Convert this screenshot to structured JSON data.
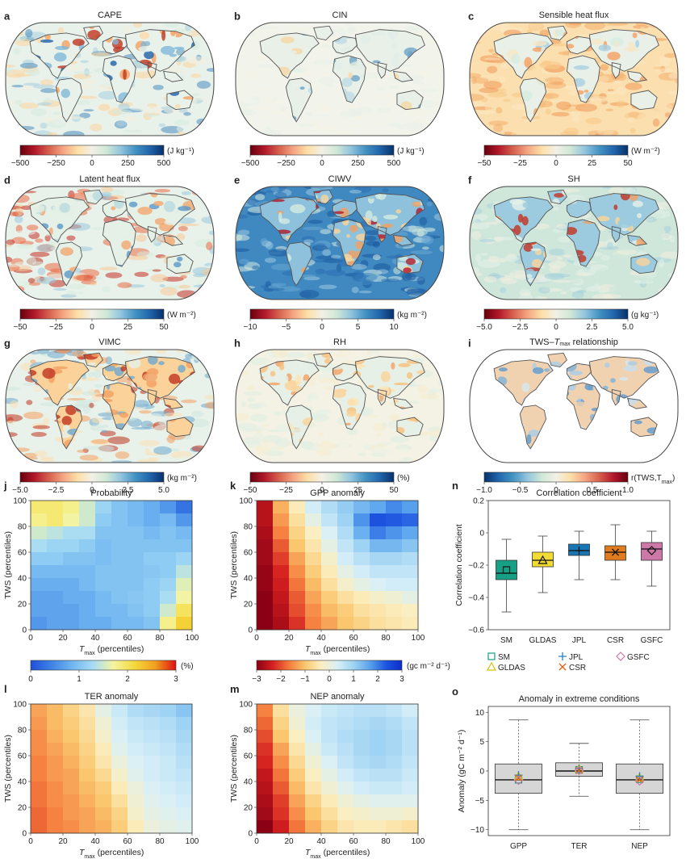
{
  "colors": {
    "diverging": [
      "#67000d",
      "#b2182b",
      "#d6604d",
      "#f4a582",
      "#fde0a8",
      "#f2f0e6",
      "#d0e8d6",
      "#92c5de",
      "#4393c3",
      "#2166ac",
      "#08306b"
    ],
    "probability": [
      "#1f4fd8",
      "#3f82e6",
      "#70b6f0",
      "#a7dcf5",
      "#f5f5a0",
      "#f5d93b",
      "#f0a020",
      "#e01010"
    ],
    "gpp": [
      "#8b0014",
      "#d42020",
      "#f47a3c",
      "#fbc76e",
      "#fbefc0",
      "#d8f0f8",
      "#9fd3f3",
      "#5aa4ee",
      "#1e56e0",
      "#0a2ec8"
    ],
    "land": "#ffffff",
    "coast": "#555555",
    "box": {
      "SM": "#16a085",
      "GLDAS": "#f2dc33",
      "JPL": "#1976b4",
      "CSR": "#e07b20",
      "GSFC": "#cc79a7"
    },
    "marker": {
      "SM": "#16a085",
      "GLDAS": "#d4c300",
      "JPL": "#2a7fc0",
      "CSR": "#e06010",
      "GSFC": "#cc79a7"
    }
  },
  "maps": [
    {
      "letter": "a",
      "title": "CAPE",
      "unit": "(J kg⁻¹)",
      "ticks": [
        "−500",
        "−250",
        "0",
        "250",
        "500"
      ],
      "variant": "cape"
    },
    {
      "letter": "b",
      "title": "CIN",
      "unit": "(J kg⁻¹)",
      "ticks": [
        "−500",
        "−250",
        "0",
        "250",
        "500"
      ],
      "variant": "cin"
    },
    {
      "letter": "c",
      "title": "Sensible heat flux",
      "unit": "(W m⁻²)",
      "ticks": [
        "−50",
        "−25",
        "0",
        "25",
        "50"
      ],
      "variant": "sensible"
    },
    {
      "letter": "d",
      "title": "Latent heat flux",
      "unit": "(W m⁻²)",
      "ticks": [
        "−50",
        "−25",
        "0",
        "25",
        "50"
      ],
      "variant": "latent"
    },
    {
      "letter": "e",
      "title": "CIWV",
      "unit": "(kg m⁻²)",
      "ticks": [
        "−10",
        "−5",
        "0",
        "5",
        "10"
      ],
      "variant": "ciwv"
    },
    {
      "letter": "f",
      "title": "SH",
      "unit": "(g kg⁻¹)",
      "ticks": [
        "−5.0",
        "−2.5",
        "0",
        "2.5",
        "5.0"
      ],
      "variant": "sh"
    },
    {
      "letter": "g",
      "title": "VIMC",
      "unit": "(kg m⁻²)",
      "ticks": [
        "−5.0",
        "−2.5",
        "0",
        "2.5",
        "5.0"
      ],
      "variant": "vimc"
    },
    {
      "letter": "h",
      "title": "RH",
      "unit": "(%)",
      "ticks": [
        "−50",
        "−25",
        "0",
        "25",
        "50"
      ],
      "variant": "rh"
    },
    {
      "letter": "i",
      "title": "TWS–T",
      "title_sub": "max",
      "title_after": " relationship",
      "unit": "r(TWS,T",
      "unit_sub": "max",
      "unit_after": ")",
      "ticks": [
        "−1.0",
        "−0.5",
        "0",
        "0.5",
        "1.0"
      ],
      "variant": "tws"
    }
  ],
  "heatmaps": {
    "axis_x_main": "T",
    "axis_x_sub": "max",
    "axis_x_after": " (percentiles)",
    "axis_y": "TWS (percentiles)",
    "ticks": [
      "0",
      "20",
      "40",
      "60",
      "80",
      "100"
    ],
    "panels": [
      {
        "letter": "j",
        "title": "Probability",
        "scheme": "probability",
        "range": [
          0,
          3
        ]
      },
      {
        "letter": "k",
        "title": "GPP anomaly",
        "scheme": "gpp",
        "range": [
          -3,
          3
        ]
      },
      {
        "letter": "l",
        "title": "TER anomaly",
        "scheme": "gpp",
        "range": [
          -3,
          3
        ]
      },
      {
        "letter": "m",
        "title": "NEP anomaly",
        "scheme": "gpp",
        "range": [
          -3,
          3
        ]
      }
    ],
    "colorbars": [
      {
        "scheme": "probability",
        "ticks": [
          "0",
          "1",
          "2",
          "3"
        ],
        "unit": "(%)"
      },
      {
        "scheme": "gpp",
        "ticks": [
          "−3",
          "−2",
          "−1",
          "0",
          "1",
          "2",
          "3"
        ],
        "unit": "(gc m⁻² d⁻¹)"
      }
    ]
  },
  "chart_data": [
    {
      "type": "heatmap",
      "title": "Probability",
      "xlabel": "Tmax (percentiles)",
      "ylabel": "TWS (percentiles)",
      "unit": "(%)",
      "x": [
        5,
        15,
        25,
        35,
        45,
        55,
        65,
        75,
        85,
        95
      ],
      "y": [
        95,
        85,
        75,
        65,
        55,
        45,
        35,
        25,
        15,
        5
      ],
      "values": [
        [
          1.9,
          1.9,
          1.8,
          1.5,
          1.2,
          1.0,
          0.9,
          0.8,
          0.6,
          0.3
        ],
        [
          1.8,
          1.9,
          1.7,
          1.5,
          1.1,
          1.0,
          0.9,
          0.8,
          0.9,
          0.6
        ],
        [
          1.5,
          1.4,
          1.3,
          1.3,
          1.0,
          1.0,
          1.0,
          0.9,
          1.0,
          0.9
        ],
        [
          1.3,
          1.2,
          1.2,
          1.1,
          0.95,
          1.0,
          1.0,
          1.0,
          1.0,
          1.0
        ],
        [
          1.1,
          1.1,
          1.0,
          1.0,
          0.95,
          1.0,
          1.0,
          1.1,
          1.1,
          1.2
        ],
        [
          0.9,
          0.9,
          0.9,
          0.9,
          1.0,
          1.0,
          1.0,
          1.05,
          1.1,
          1.4
        ],
        [
          0.8,
          0.8,
          0.8,
          0.9,
          1.0,
          1.0,
          1.0,
          1.1,
          1.2,
          1.6
        ],
        [
          0.7,
          0.7,
          0.8,
          0.8,
          0.9,
          1.0,
          1.05,
          1.1,
          1.3,
          1.7
        ],
        [
          0.7,
          0.7,
          0.7,
          0.8,
          0.9,
          0.9,
          1.0,
          1.1,
          1.5,
          2.0
        ],
        [
          0.6,
          0.7,
          0.7,
          0.8,
          0.8,
          0.9,
          0.9,
          1.0,
          1.8,
          2.2
        ]
      ]
    },
    {
      "type": "heatmap",
      "title": "GPP anomaly",
      "xlabel": "Tmax (percentiles)",
      "ylabel": "TWS (percentiles)",
      "unit": "(gc m⁻² d⁻¹)",
      "x": [
        5,
        15,
        25,
        35,
        45,
        55,
        65,
        75,
        85,
        95
      ],
      "y": [
        95,
        85,
        75,
        65,
        55,
        45,
        35,
        25,
        15,
        5
      ],
      "values": [
        [
          -2.6,
          -1.2,
          -0.4,
          0.4,
          0.8,
          1.1,
          1.4,
          1.6,
          1.9,
          1.7
        ],
        [
          -2.6,
          -1.4,
          -0.6,
          0.1,
          0.6,
          1.0,
          1.8,
          2.4,
          2.3,
          2.2
        ],
        [
          -2.7,
          -1.6,
          -0.8,
          -0.3,
          0.3,
          0.8,
          1.5,
          2.0,
          1.8,
          1.6
        ],
        [
          -2.8,
          -1.9,
          -1.0,
          -0.5,
          0.1,
          0.6,
          1.0,
          1.4,
          1.4,
          1.2
        ],
        [
          -2.8,
          -2.1,
          -1.3,
          -0.7,
          -0.2,
          0.4,
          0.7,
          0.9,
          0.9,
          0.8
        ],
        [
          -2.9,
          -2.3,
          -1.5,
          -0.9,
          -0.4,
          0.1,
          0.4,
          0.6,
          0.6,
          0.6
        ],
        [
          -2.9,
          -2.4,
          -1.7,
          -1.1,
          -0.6,
          -0.2,
          0.1,
          0.3,
          0.4,
          0.4
        ],
        [
          -3.0,
          -2.5,
          -1.9,
          -1.3,
          -0.9,
          -0.6,
          -0.4,
          -0.2,
          -0.1,
          0.1
        ],
        [
          -3.0,
          -2.6,
          -2.0,
          -1.5,
          -1.1,
          -0.9,
          -0.6,
          -0.5,
          -0.4,
          -0.3
        ],
        [
          -3.0,
          -2.7,
          -2.2,
          -1.6,
          -1.3,
          -1.0,
          -0.8,
          -0.6,
          -0.5,
          -0.4
        ]
      ]
    },
    {
      "type": "heatmap",
      "title": "TER anomaly",
      "xlabel": "Tmax (percentiles)",
      "ylabel": "TWS (percentiles)",
      "unit": "(gc m⁻² d⁻¹)",
      "x": [
        5,
        15,
        25,
        35,
        45,
        55,
        65,
        75,
        85,
        95
      ],
      "y": [
        95,
        85,
        75,
        65,
        55,
        45,
        35,
        25,
        15,
        5
      ],
      "values": [
        [
          -1.3,
          -1.1,
          -0.8,
          -0.5,
          0.1,
          0.5,
          0.8,
          0.9,
          1.0,
          1.2
        ],
        [
          -1.4,
          -1.1,
          -0.9,
          -0.6,
          -0.1,
          0.4,
          0.6,
          0.7,
          0.8,
          1.0
        ],
        [
          -1.5,
          -1.2,
          -1.0,
          -0.7,
          -0.2,
          0.3,
          0.5,
          0.6,
          0.7,
          0.9
        ],
        [
          -1.5,
          -1.3,
          -1.1,
          -0.8,
          -0.4,
          0.2,
          0.4,
          0.5,
          0.6,
          0.8
        ],
        [
          -1.6,
          -1.4,
          -1.2,
          -0.9,
          -0.5,
          0.0,
          0.3,
          0.4,
          0.5,
          0.7
        ],
        [
          -1.6,
          -1.4,
          -1.3,
          -1.0,
          -0.7,
          -0.2,
          0.2,
          0.4,
          0.5,
          0.6
        ],
        [
          -1.7,
          -1.5,
          -1.3,
          -1.1,
          -0.9,
          -0.4,
          0.0,
          0.3,
          0.4,
          0.5
        ],
        [
          -1.7,
          -1.5,
          -1.4,
          -1.2,
          -1.0,
          -0.6,
          -0.1,
          0.2,
          0.3,
          0.4
        ],
        [
          -1.8,
          -1.6,
          -1.4,
          -1.3,
          -1.1,
          -0.8,
          -0.2,
          0.1,
          0.2,
          0.3
        ],
        [
          -1.8,
          -1.6,
          -1.5,
          -1.3,
          -1.2,
          -0.9,
          -0.4,
          0.0,
          0.1,
          0.2
        ]
      ]
    },
    {
      "type": "heatmap",
      "title": "NEP anomaly",
      "xlabel": "Tmax (percentiles)",
      "ylabel": "TWS (percentiles)",
      "unit": "(gc m⁻² d⁻¹)",
      "x": [
        5,
        15,
        25,
        35,
        45,
        55,
        65,
        75,
        85,
        95
      ],
      "y": [
        95,
        85,
        75,
        65,
        55,
        45,
        35,
        25,
        15,
        5
      ],
      "values": [
        [
          -1.6,
          -0.6,
          0.0,
          0.3,
          0.5,
          0.6,
          0.7,
          0.7,
          0.6,
          0.4
        ],
        [
          -1.8,
          -0.8,
          -0.1,
          0.4,
          0.6,
          0.7,
          0.8,
          0.9,
          0.8,
          0.6
        ],
        [
          -2.0,
          -1.0,
          -0.3,
          0.3,
          0.6,
          0.8,
          0.9,
          1.0,
          0.9,
          0.7
        ],
        [
          -2.2,
          -1.3,
          -0.5,
          0.1,
          0.5,
          0.7,
          0.9,
          1.0,
          0.9,
          0.7
        ],
        [
          -2.3,
          -1.5,
          -0.7,
          -0.1,
          0.3,
          0.6,
          0.8,
          0.9,
          0.8,
          0.6
        ],
        [
          -2.5,
          -1.7,
          -0.9,
          -0.3,
          0.1,
          0.4,
          0.6,
          0.7,
          0.7,
          0.5
        ],
        [
          -2.6,
          -1.9,
          -1.1,
          -0.5,
          -0.1,
          0.2,
          0.4,
          0.5,
          0.5,
          0.4
        ],
        [
          -2.7,
          -2.1,
          -1.3,
          -0.8,
          -0.4,
          -0.1,
          0.1,
          0.2,
          0.2,
          0.2
        ],
        [
          -2.8,
          -2.2,
          -1.5,
          -1.0,
          -0.6,
          -0.3,
          -0.2,
          -0.1,
          -0.1,
          -0.2
        ],
        [
          -3.0,
          -2.4,
          -1.7,
          -1.2,
          -0.8,
          -0.5,
          -0.4,
          -0.4,
          -0.5,
          -0.6
        ]
      ]
    },
    {
      "type": "box",
      "title": "Correlation coefficient",
      "ylabel": "Correlation coefficient",
      "ylim": [
        -0.6,
        0.2
      ],
      "yticks": [
        "−0.6",
        "−0.4",
        "−0.2",
        "0",
        "0.2"
      ],
      "categories": [
        "SM",
        "GLDAS",
        "JPL",
        "CSR",
        "GSFC"
      ],
      "boxes": [
        {
          "name": "SM",
          "whisker_low": -0.49,
          "q1": -0.29,
          "median": -0.25,
          "q3": -0.17,
          "whisker_high": -0.04,
          "marker": -0.23,
          "marker_shape": "square"
        },
        {
          "name": "GLDAS",
          "whisker_low": -0.37,
          "q1": -0.21,
          "median": -0.17,
          "q3": -0.12,
          "whisker_high": -0.02,
          "marker": -0.17,
          "marker_shape": "triangle"
        },
        {
          "name": "JPL",
          "whisker_low": -0.29,
          "q1": -0.14,
          "median": -0.11,
          "q3": -0.07,
          "whisker_high": 0.01,
          "marker": -0.11,
          "marker_shape": "plus"
        },
        {
          "name": "CSR",
          "whisker_low": -0.29,
          "q1": -0.17,
          "median": -0.12,
          "q3": -0.08,
          "whisker_high": 0.05,
          "marker": -0.12,
          "marker_shape": "x"
        },
        {
          "name": "GSFC",
          "whisker_low": -0.33,
          "q1": -0.17,
          "median": -0.1,
          "q3": -0.06,
          "whisker_high": 0.01,
          "marker": -0.11,
          "marker_shape": "diamond"
        }
      ],
      "legend": [
        "SM",
        "JPL",
        "GSFC",
        "GLDAS",
        "CSR"
      ]
    },
    {
      "type": "box",
      "title": "Anomaly in extreme conditions",
      "ylabel": "Anomaly (gC m⁻² d⁻¹)",
      "ylim": [
        -11,
        11
      ],
      "yticks": [
        "−10",
        "−5",
        "0",
        "5",
        "10"
      ],
      "categories": [
        "GPP",
        "TER",
        "NEP"
      ],
      "boxes": [
        {
          "name": "GPP",
          "whisker_low": -10.0,
          "q1": -3.8,
          "median": -1.5,
          "q3": 1.2,
          "whisker_high": 8.7,
          "markers": {
            "SM": -1.5,
            "GLDAS": -0.9,
            "JPL": -0.7,
            "CSR": -1.2,
            "GSFC": -1.6
          }
        },
        {
          "name": "TER",
          "whisker_low": -4.3,
          "q1": -0.9,
          "median": 0.0,
          "q3": 1.4,
          "whisker_high": 4.7,
          "markers": {
            "SM": 0.2,
            "GLDAS": 0.4,
            "JPL": 0.4,
            "CSR": 0.1,
            "GSFC": 0.1
          }
        },
        {
          "name": "NEP",
          "whisker_low": -10.0,
          "q1": -3.8,
          "median": -1.5,
          "q3": 1.2,
          "whisker_high": 8.7,
          "markers": {
            "SM": -1.4,
            "GLDAS": -1.1,
            "JPL": -0.9,
            "CSR": -1.5,
            "GSFC": -1.7
          }
        }
      ]
    }
  ],
  "panel_n": {
    "letter": "n",
    "ticks_x": [
      "SM",
      "GLDAS",
      "JPL",
      "CSR",
      "GSFC"
    ]
  },
  "panel_o": {
    "letter": "o",
    "ticks_x": [
      "GPP",
      "TER",
      "NEP"
    ]
  }
}
